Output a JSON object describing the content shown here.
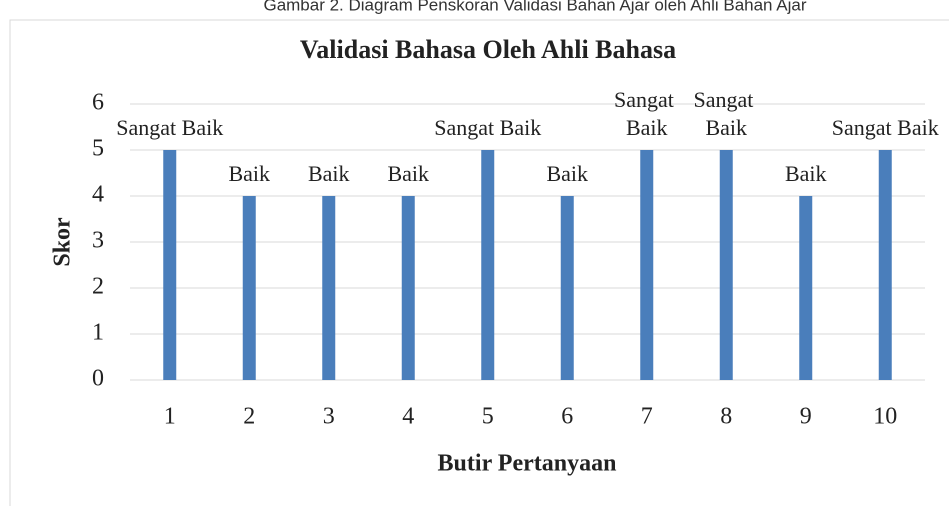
{
  "caption": "Gambar 2. Diagram Penskoran Validasi Bahan Ajar oleh Ahli Bahan Ajar",
  "chart_data": {
    "type": "bar",
    "title": "Validasi Bahasa Oleh Ahli Bahasa",
    "x_label": "Butir Pertanyaan",
    "y_label": "Skor",
    "categories": [
      "1",
      "2",
      "3",
      "4",
      "5",
      "6",
      "7",
      "8",
      "9",
      "10"
    ],
    "values": [
      5,
      4,
      4,
      4,
      5,
      4,
      5,
      5,
      4,
      5
    ],
    "value_labels": [
      "Sangat Baik",
      "Baik",
      "Baik",
      "Baik",
      "Sangat Baik",
      "Baik",
      "Sangat Baik",
      "Sangat Baik",
      "Baik",
      "Sangat Baik"
    ],
    "color": "#4a7ebb",
    "ylim": [
      0,
      6
    ],
    "yticks": [
      0,
      1,
      2,
      3,
      4,
      5,
      6
    ],
    "grid": true
  }
}
